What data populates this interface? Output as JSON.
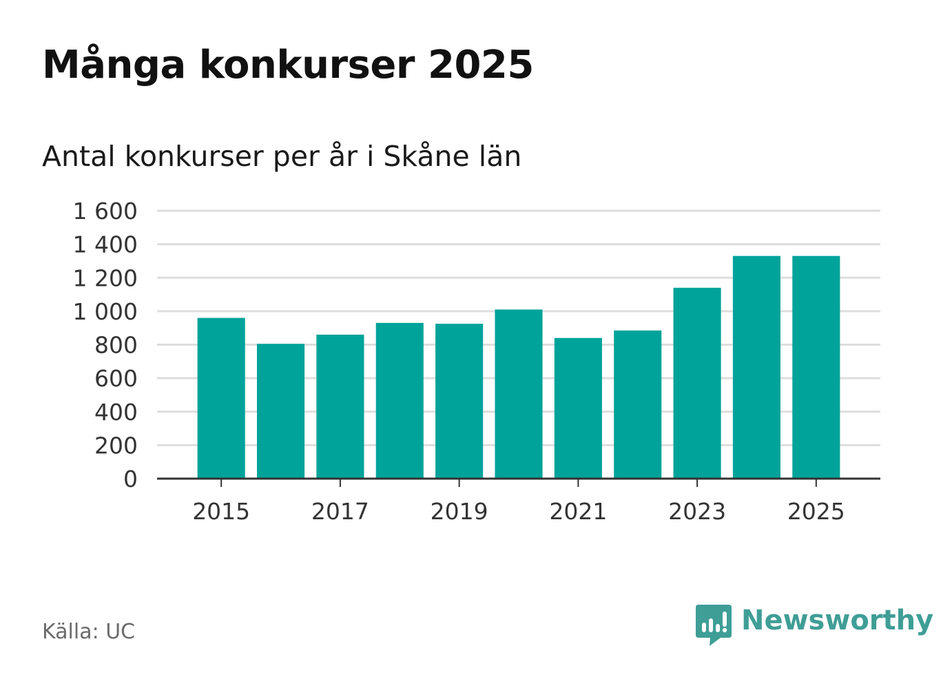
{
  "title": "Många konkurser 2025",
  "subtitle": "Antal konkurser per år i Skåne län",
  "source": "Källa: UC",
  "brand": {
    "name": "Newsworthy",
    "icon": "newsworthy-logo-icon",
    "color": "#3f9e96"
  },
  "colors": {
    "bar": "#00a39a",
    "grid": "#dddddd",
    "axis": "#333333"
  },
  "chart_data": {
    "type": "bar",
    "categories": [
      "2015",
      "2016",
      "2017",
      "2018",
      "2019",
      "2020",
      "2021",
      "2022",
      "2023",
      "2024",
      "2025"
    ],
    "values": [
      960,
      805,
      860,
      930,
      925,
      1010,
      840,
      885,
      1140,
      1330,
      1330
    ],
    "x_tick_labels": [
      "2015",
      "2017",
      "2019",
      "2021",
      "2023",
      "2025"
    ],
    "y_ticks": [
      0,
      200,
      400,
      600,
      800,
      1000,
      1200,
      1400,
      1600
    ],
    "y_tick_labels": [
      "0",
      "200",
      "400",
      "600",
      "800",
      "1 000",
      "1 200",
      "1 400",
      "1 600"
    ],
    "ylim": [
      0,
      1600
    ],
    "grid": true,
    "legend": "none"
  }
}
